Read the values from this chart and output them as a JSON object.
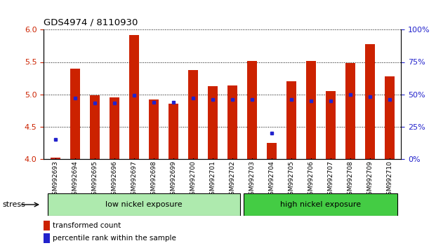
{
  "title": "GDS4974 / 8110930",
  "samples": [
    "GSM992693",
    "GSM992694",
    "GSM992695",
    "GSM992696",
    "GSM992697",
    "GSM992698",
    "GSM992699",
    "GSM992700",
    "GSM992701",
    "GSM992702",
    "GSM992703",
    "GSM992704",
    "GSM992705",
    "GSM992706",
    "GSM992707",
    "GSM992708",
    "GSM992709",
    "GSM992710"
  ],
  "transformed_count": [
    4.02,
    5.4,
    4.98,
    4.95,
    5.92,
    4.92,
    4.85,
    5.37,
    5.12,
    5.14,
    5.52,
    4.24,
    5.2,
    5.52,
    5.05,
    5.48,
    5.78,
    5.28
  ],
  "percentile_rank": [
    15,
    47,
    43,
    43,
    49,
    44,
    44,
    47,
    46,
    46,
    46,
    20,
    46,
    45,
    45,
    50,
    48,
    46
  ],
  "low_nickel_count": 10,
  "high_nickel_count": 8,
  "group_labels": [
    "low nickel exposure",
    "high nickel exposure"
  ],
  "low_color": "#aeeaae",
  "high_color": "#44cc44",
  "bar_color": "#cc2200",
  "dot_color": "#2222cc",
  "ylim_left": [
    4.0,
    6.0
  ],
  "ylim_right": [
    0,
    100
  ],
  "yticks_left": [
    4.0,
    4.5,
    5.0,
    5.5,
    6.0
  ],
  "yticks_right": [
    0,
    25,
    50,
    75,
    100
  ],
  "stress_label": "stress",
  "legend_entries": [
    "transformed count",
    "percentile rank within the sample"
  ],
  "background_color": "#ffffff"
}
